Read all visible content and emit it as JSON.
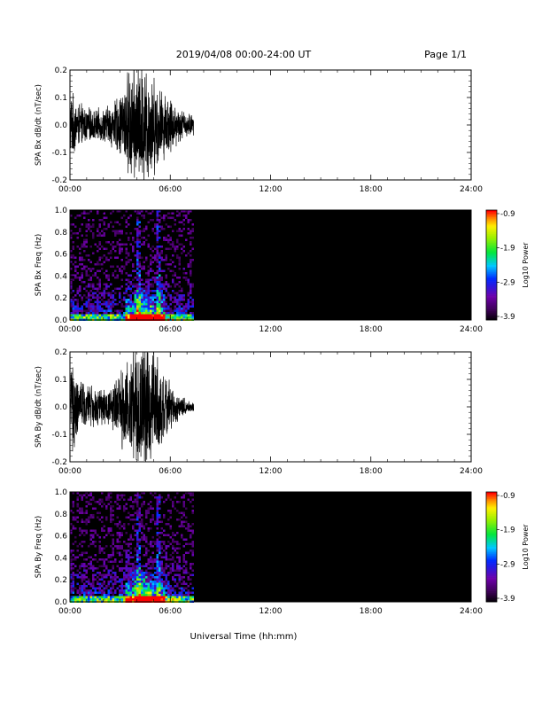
{
  "header": {
    "title": "2019/04/08  00:00-24:00 UT",
    "page_label": "Page 1/1"
  },
  "xlabel": "Universal Time (hh:mm)",
  "chart_data": [
    {
      "type": "line",
      "ylabel": "SPA Bx dB/dt (nT/sec)",
      "xlim": [
        0,
        24
      ],
      "ylim": [
        -0.2,
        0.2
      ],
      "x_ticks": [
        "00:00",
        "06:00",
        "12:00",
        "18:00",
        "24:00"
      ],
      "y_ticks": [
        "0.2",
        "0.1",
        "0.0",
        "-0.1",
        "-0.2"
      ],
      "data_end_hour": 7.4,
      "envelope": [
        {
          "hour": 0.0,
          "amp": 0.14
        },
        {
          "hour": 0.5,
          "amp": 0.09
        },
        {
          "hour": 1.0,
          "amp": 0.07
        },
        {
          "hour": 1.5,
          "amp": 0.06
        },
        {
          "hour": 2.0,
          "amp": 0.07
        },
        {
          "hour": 2.5,
          "amp": 0.09
        },
        {
          "hour": 3.0,
          "amp": 0.12
        },
        {
          "hour": 3.5,
          "amp": 0.22
        },
        {
          "hour": 4.0,
          "amp": 0.25
        },
        {
          "hour": 4.5,
          "amp": 0.25
        },
        {
          "hour": 5.0,
          "amp": 0.2
        },
        {
          "hour": 5.5,
          "amp": 0.14
        },
        {
          "hour": 6.0,
          "amp": 0.12
        },
        {
          "hour": 6.5,
          "amp": 0.07
        },
        {
          "hour": 7.0,
          "amp": 0.05
        },
        {
          "hour": 7.4,
          "amp": 0.04
        }
      ]
    },
    {
      "type": "heatmap",
      "ylabel": "SPA Bx Freq (Hz)",
      "xlim": [
        0,
        24
      ],
      "ylim": [
        0.0,
        1.0
      ],
      "x_ticks": [
        "00:00",
        "06:00",
        "12:00",
        "18:00",
        "24:00"
      ],
      "y_ticks": [
        "1.0",
        "0.8",
        "0.6",
        "0.4",
        "0.2",
        "0.0"
      ],
      "data_end_hour": 7.4,
      "colorbar": {
        "label": "Log10 Power",
        "min": -3.9,
        "max": -0.9,
        "ticks": [
          "-0.9",
          "-1.9",
          "-2.9",
          "-3.9"
        ]
      },
      "hot_bands_hour": [
        4.0,
        5.25
      ]
    },
    {
      "type": "line",
      "ylabel": "SPA By dB/dt (nT/sec)",
      "xlim": [
        0,
        24
      ],
      "ylim": [
        -0.2,
        0.2
      ],
      "x_ticks": [
        "00:00",
        "06:00",
        "12:00",
        "18:00",
        "24:00"
      ],
      "y_ticks": [
        "0.2",
        "0.1",
        "0.0",
        "-0.1",
        "-0.2"
      ],
      "data_end_hour": 7.4,
      "envelope": [
        {
          "hour": 0.0,
          "amp": 0.2
        },
        {
          "hour": 0.5,
          "amp": 0.12
        },
        {
          "hour": 1.0,
          "amp": 0.09
        },
        {
          "hour": 1.5,
          "amp": 0.08
        },
        {
          "hour": 2.0,
          "amp": 0.07
        },
        {
          "hour": 2.5,
          "amp": 0.09
        },
        {
          "hour": 3.0,
          "amp": 0.14
        },
        {
          "hour": 3.5,
          "amp": 0.22
        },
        {
          "hour": 4.0,
          "amp": 0.25
        },
        {
          "hour": 4.5,
          "amp": 0.25
        },
        {
          "hour": 5.0,
          "amp": 0.24
        },
        {
          "hour": 5.5,
          "amp": 0.16
        },
        {
          "hour": 6.0,
          "amp": 0.1
        },
        {
          "hour": 6.5,
          "amp": 0.05
        },
        {
          "hour": 7.0,
          "amp": 0.03
        },
        {
          "hour": 7.4,
          "amp": 0.02
        }
      ]
    },
    {
      "type": "heatmap",
      "ylabel": "SPA By Freq (Hz)",
      "xlim": [
        0,
        24
      ],
      "ylim": [
        0.0,
        1.0
      ],
      "x_ticks": [
        "00:00",
        "06:00",
        "12:00",
        "18:00",
        "24:00"
      ],
      "y_ticks": [
        "1.0",
        "0.8",
        "0.6",
        "0.4",
        "0.2",
        "0.0"
      ],
      "data_end_hour": 7.4,
      "colorbar": {
        "label": "Log10 Power",
        "min": -3.9,
        "max": -0.9,
        "ticks": [
          "-0.9",
          "-1.9",
          "-2.9",
          "-3.9"
        ]
      },
      "hot_bands_hour": [
        4.0,
        5.25
      ]
    }
  ]
}
